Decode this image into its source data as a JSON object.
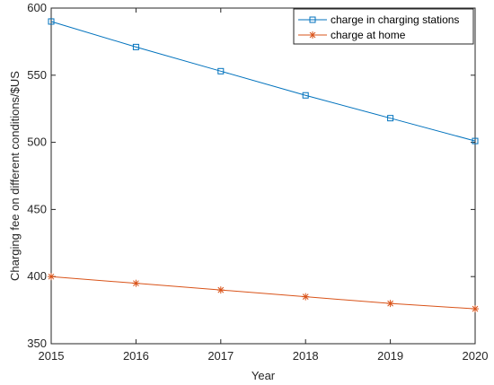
{
  "chart_data": {
    "type": "line",
    "x": [
      2015,
      2016,
      2017,
      2018,
      2019,
      2020
    ],
    "series": [
      {
        "name": "charge in charging stations",
        "values": [
          590,
          571,
          553,
          535,
          518,
          501
        ],
        "color": "#0072bd",
        "marker": "square"
      },
      {
        "name": "charge at home",
        "values": [
          400,
          395,
          390,
          385,
          380,
          376
        ],
        "color": "#d95319",
        "marker": "star"
      }
    ],
    "xlabel": "Year",
    "ylabel": "Charging fee on different conditions/$US",
    "xlim": [
      2015,
      2020
    ],
    "ylim": [
      350,
      600
    ],
    "xticks": [
      "2015",
      "2016",
      "2017",
      "2018",
      "2019",
      "2020"
    ],
    "yticks": [
      "350",
      "400",
      "450",
      "500",
      "550",
      "600"
    ],
    "grid": false,
    "legend_position": "top-right"
  }
}
